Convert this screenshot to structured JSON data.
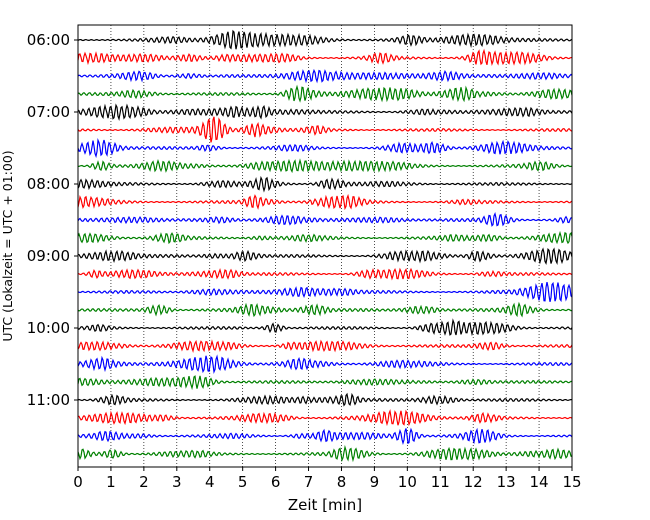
{
  "chart_data": {
    "type": "line",
    "title": "",
    "xlabel": "Zeit  [min]",
    "ylabel": "UTC (Lokalzeit = UTC + 01:00)",
    "xlim": [
      0,
      15
    ],
    "x_ticks": [
      0,
      1,
      2,
      3,
      4,
      5,
      6,
      7,
      8,
      9,
      10,
      11,
      12,
      13,
      14,
      15
    ],
    "x_tick_labels": [
      "0",
      "1",
      "2",
      "3",
      "4",
      "5",
      "6",
      "7",
      "8",
      "9",
      "10",
      "11",
      "12",
      "13",
      "14",
      "15"
    ],
    "y_ticks": [
      "06:00",
      "07:00",
      "08:00",
      "09:00",
      "10:00",
      "11:00"
    ],
    "grid_x": true,
    "grid_x_style": "dotted",
    "trace_interval_min": 15,
    "trace_count": 24,
    "trace_colors": [
      "#000000",
      "#ff0000",
      "#0000ff",
      "#008000"
    ],
    "legend": "none"
  }
}
